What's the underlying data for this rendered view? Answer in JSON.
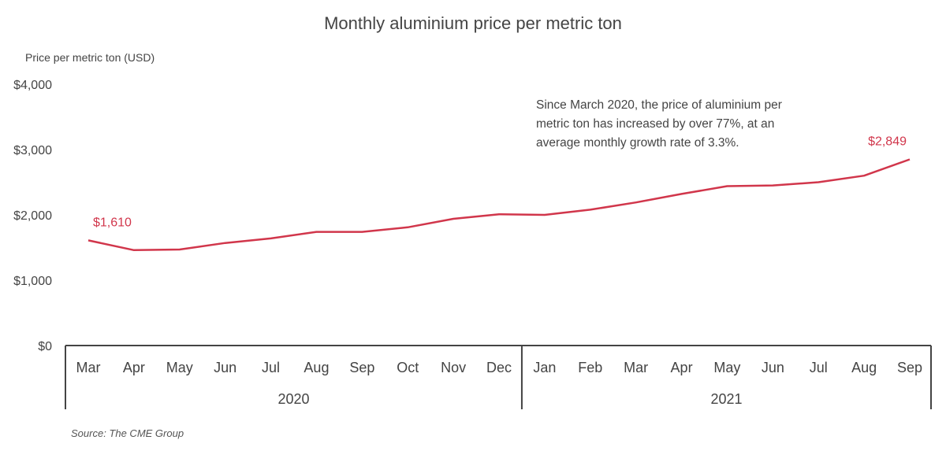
{
  "colors": {
    "line": "#d1364b",
    "axis": "#444444",
    "text": "#444444"
  },
  "chart_data": {
    "type": "line",
    "title": "Monthly aluminium price per metric ton",
    "ylabel": "Price per metric ton (USD)",
    "xlabel": "",
    "ylim": [
      0,
      4000
    ],
    "yticks": [
      0,
      1000,
      2000,
      3000,
      4000
    ],
    "ytick_labels": [
      "$0",
      "$1,000",
      "$2,000",
      "$3,000",
      "$4,000"
    ],
    "grid": false,
    "categories": [
      "Mar",
      "Apr",
      "May",
      "Jun",
      "Jul",
      "Aug",
      "Sep",
      "Oct",
      "Nov",
      "Dec",
      "Jan",
      "Feb",
      "Mar",
      "Apr",
      "May",
      "Jun",
      "Jul",
      "Aug",
      "Sep"
    ],
    "year_groups": [
      {
        "label": "2020",
        "start": 0,
        "end": 9
      },
      {
        "label": "2021",
        "start": 10,
        "end": 18
      }
    ],
    "series": [
      {
        "values": [
          1610,
          1460,
          1470,
          1570,
          1640,
          1740,
          1740,
          1810,
          1940,
          2010,
          2000,
          2080,
          2190,
          2320,
          2440,
          2450,
          2500,
          2600,
          2849
        ]
      }
    ],
    "data_labels": [
      {
        "index": 0,
        "text": "$1,610"
      },
      {
        "index": 18,
        "text": "$2,849"
      }
    ],
    "annotation": [
      "Since March 2020, the price of aluminium per",
      "metric ton has increased by over 77%, at an",
      "average monthly growth rate of 3.3%."
    ],
    "source": "Source: The CME Group"
  }
}
